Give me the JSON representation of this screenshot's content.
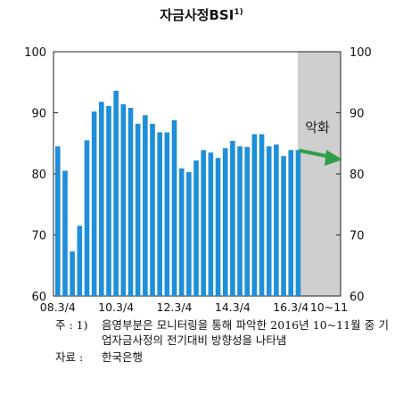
{
  "chart_data": {
    "type": "bar",
    "title": "자금사정BSI",
    "title_footnote_mark": "1)",
    "ylim": [
      60,
      100
    ],
    "yticks": [
      60,
      70,
      80,
      90,
      100
    ],
    "x_tick_labels": [
      "08.3/4",
      "10.3/4",
      "12.3/4",
      "14.3/4",
      "16.3/4",
      "10~11"
    ],
    "categories": [
      "08.3/4",
      "08.4/4",
      "09.1/4",
      "09.2/4",
      "09.3/4",
      "09.4/4",
      "10.1/4",
      "10.2/4",
      "10.3/4",
      "10.4/4",
      "11.1/4",
      "11.2/4",
      "11.3/4",
      "11.4/4",
      "12.1/4",
      "12.2/4",
      "12.3/4",
      "12.4/4",
      "13.1/4",
      "13.2/4",
      "13.3/4",
      "13.4/4",
      "14.1/4",
      "14.2/4",
      "14.3/4",
      "14.4/4",
      "15.1/4",
      "15.2/4",
      "15.3/4",
      "15.4/4",
      "16.1/4",
      "16.2/4",
      "16.3/4",
      "16.4/4"
    ],
    "values": [
      84.5,
      80.5,
      67.3,
      71.5,
      85.5,
      90.2,
      91.8,
      91.1,
      93.6,
      91.4,
      90.8,
      88.2,
      89.6,
      88.2,
      86.8,
      86.8,
      88.8,
      80.9,
      80.3,
      82.2,
      83.9,
      83.5,
      82.6,
      84.2,
      85.4,
      84.5,
      84.4,
      86.5,
      86.5,
      84.5,
      84.8,
      82.9,
      83.9,
      83.9
    ],
    "bar_color": "#1e8fd8",
    "shaded_region_color": "#cfcfcf",
    "arrow_color": "#2f9e4a",
    "annotation": "악화"
  },
  "notes": {
    "note_label": "주 : 1)",
    "note_text": "음영부분은 모니터링을 통해 파악한 2016년 10~11월 중 기업자금사정의 전기대비 방향성을 나타냄",
    "source_label": "자료 :",
    "source_text": "한국은행"
  }
}
